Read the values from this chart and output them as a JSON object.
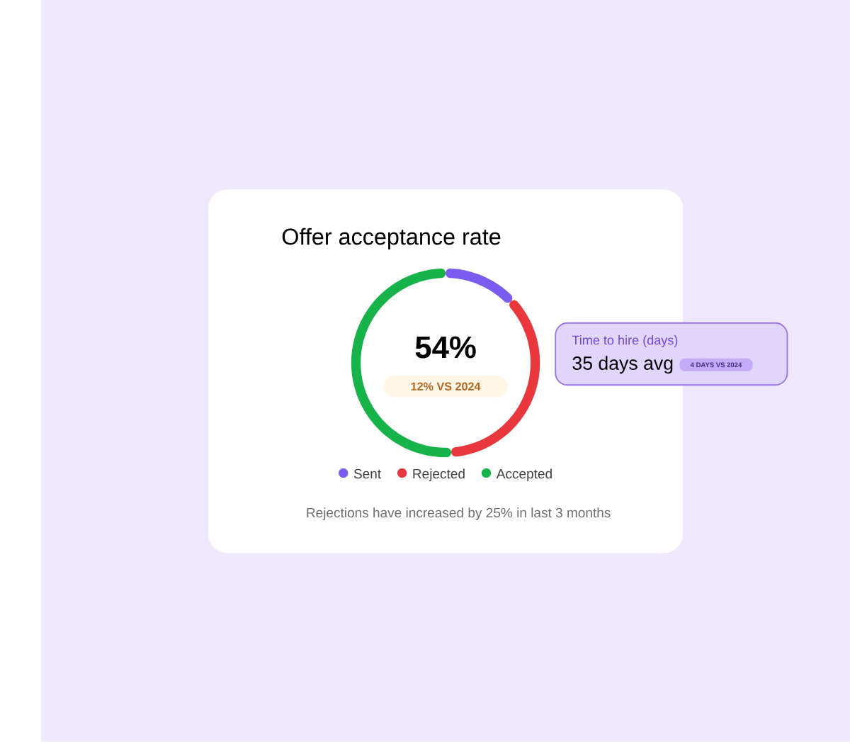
{
  "chart_data": {
    "type": "donut",
    "title": "Offer acceptance rate",
    "categories": [
      "Sent",
      "Rejected",
      "Accepted"
    ],
    "values": [
      13,
      36,
      51
    ],
    "colors": [
      "#7b5cf0",
      "#e8383d",
      "#16b34a"
    ],
    "legend": "bottom",
    "annotations": [
      "54%",
      "12% VS 2024",
      "Time to hire (days)",
      "35 days avg",
      "4 DAYS VS 2024",
      "Rejections have increased by 25% in last 3 months"
    ]
  }
}
